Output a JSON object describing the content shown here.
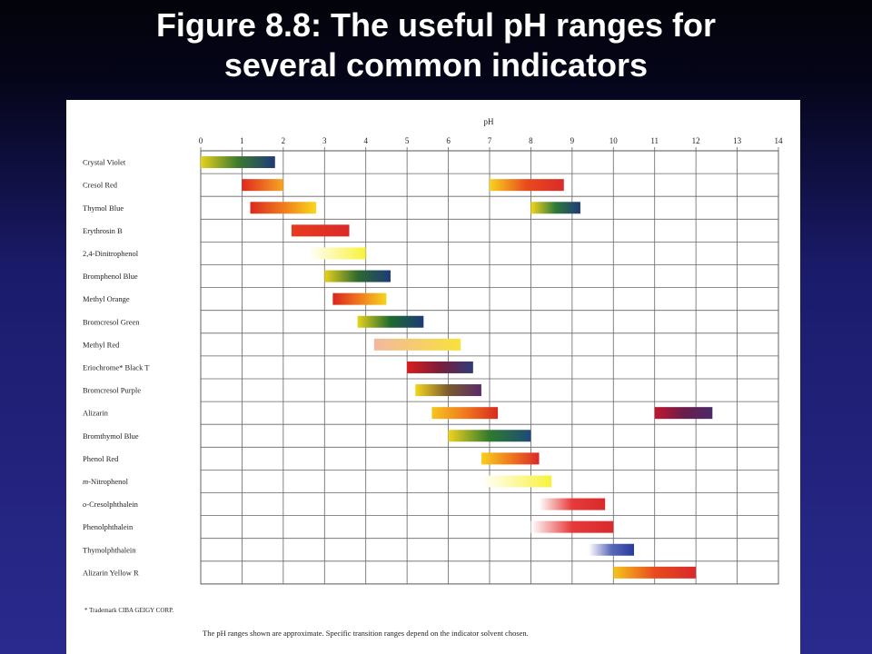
{
  "slide": {
    "title_line1": "Figure 8.8:  The useful pH ranges for",
    "title_line2": "several common indicators"
  },
  "chart_data": {
    "type": "range-bar",
    "axis_label": "pH",
    "x_ticks": [
      "0",
      "1",
      "2",
      "3",
      "4",
      "5",
      "6",
      "7",
      "8",
      "9",
      "10",
      "11",
      "12",
      "13",
      "14"
    ],
    "xlim": [
      0,
      14
    ],
    "grid": true,
    "indicators": [
      {
        "name": "Crystal Violet",
        "ranges": [
          {
            "start": 0.0,
            "end": 1.8,
            "colors": [
              "#e6d21e",
              "#3c7a2e",
              "#1e3a78"
            ]
          }
        ]
      },
      {
        "name": "Cresol Red",
        "ranges": [
          {
            "start": 1.0,
            "end": 2.0,
            "colors": [
              "#e02a1e",
              "#f5a623"
            ]
          },
          {
            "start": 7.0,
            "end": 8.8,
            "colors": [
              "#f8d21e",
              "#e84a1e",
              "#d92a2a"
            ]
          }
        ]
      },
      {
        "name": "Thymol Blue",
        "ranges": [
          {
            "start": 1.2,
            "end": 2.8,
            "colors": [
              "#d92a1e",
              "#f07a1e",
              "#f8d81e"
            ]
          },
          {
            "start": 8.0,
            "end": 9.2,
            "colors": [
              "#f5d51e",
              "#2e7a3a",
              "#1e3a78"
            ]
          }
        ]
      },
      {
        "name": "Erythrosin B",
        "ranges": [
          {
            "start": 2.2,
            "end": 3.6,
            "colors": [
              "#e83a1e",
              "#d92a2a"
            ]
          }
        ]
      },
      {
        "name": "2,4-Dinitrophenol",
        "ranges": [
          {
            "start": 2.6,
            "end": 4.0,
            "colors": [
              "#ffffff",
              "#f8f23a"
            ]
          }
        ]
      },
      {
        "name": "Bromphenol Blue",
        "ranges": [
          {
            "start": 3.0,
            "end": 4.6,
            "colors": [
              "#e6d21e",
              "#2e6a2e",
              "#1e3a78"
            ]
          }
        ]
      },
      {
        "name": "Methyl Orange",
        "ranges": [
          {
            "start": 3.2,
            "end": 4.5,
            "colors": [
              "#d9261e",
              "#f07a1e",
              "#f5d51e"
            ]
          }
        ]
      },
      {
        "name": "Bromcresol Green",
        "ranges": [
          {
            "start": 3.8,
            "end": 5.4,
            "colors": [
              "#e6d21e",
              "#1e6a2e",
              "#1e3a78"
            ]
          }
        ]
      },
      {
        "name": "Methyl Red",
        "ranges": [
          {
            "start": 4.2,
            "end": 6.3,
            "colors": [
              "#f2b8a0",
              "#f8e23a"
            ]
          }
        ]
      },
      {
        "name": "Eriochrome* Black T",
        "ranges": [
          {
            "start": 5.0,
            "end": 6.6,
            "colors": [
              "#d91e1e",
              "#7a1e3a",
              "#2e3a78"
            ]
          }
        ]
      },
      {
        "name": "Bromcresol Purple",
        "ranges": [
          {
            "start": 5.2,
            "end": 6.8,
            "colors": [
              "#f5d51e",
              "#7a5a2e",
              "#5a2a6a"
            ]
          }
        ]
      },
      {
        "name": "Alizarin",
        "ranges": [
          {
            "start": 5.6,
            "end": 7.2,
            "colors": [
              "#f5c51e",
              "#f07a1e",
              "#d92a1e"
            ]
          },
          {
            "start": 11.0,
            "end": 12.4,
            "colors": [
              "#c2162e",
              "#6a1e4a",
              "#4a2a6a"
            ]
          }
        ]
      },
      {
        "name": "Bromthymol Blue",
        "ranges": [
          {
            "start": 6.0,
            "end": 8.0,
            "colors": [
              "#f0d21e",
              "#2e7a2e",
              "#1e4a78"
            ]
          }
        ]
      },
      {
        "name": "Phenol Red",
        "ranges": [
          {
            "start": 6.8,
            "end": 8.2,
            "colors": [
              "#f8d01e",
              "#f07a1e",
              "#d92a2a"
            ]
          }
        ]
      },
      {
        "name": "m-Nitrophenol",
        "italic_prefix": "m",
        "ranges": [
          {
            "start": 6.8,
            "end": 8.5,
            "colors": [
              "#ffffff",
              "#f8f23a"
            ]
          }
        ]
      },
      {
        "name": "o-Cresolphthalein",
        "italic_prefix": "o",
        "ranges": [
          {
            "start": 8.2,
            "end": 9.8,
            "colors": [
              "#ffffff",
              "#e63a3a",
              "#d92a2a"
            ]
          }
        ]
      },
      {
        "name": "Phenolphthalein",
        "ranges": [
          {
            "start": 8.0,
            "end": 10.0,
            "colors": [
              "#ffffff",
              "#e63a3a",
              "#d92a2a"
            ]
          }
        ]
      },
      {
        "name": "Thymolphthalein",
        "ranges": [
          {
            "start": 9.4,
            "end": 10.5,
            "colors": [
              "#ffffff",
              "#5a6ab8",
              "#2a3a9a"
            ]
          }
        ]
      },
      {
        "name": "Alizarin Yellow R",
        "ranges": [
          {
            "start": 10.0,
            "end": 12.0,
            "colors": [
              "#f5c51e",
              "#e84a1e",
              "#d92a2a"
            ]
          }
        ]
      }
    ],
    "footnote": "* Trademark CIBA GEIGY CORP.",
    "caption": "The pH ranges shown are approximate.  Specific transition ranges depend on the indicator solvent chosen."
  }
}
